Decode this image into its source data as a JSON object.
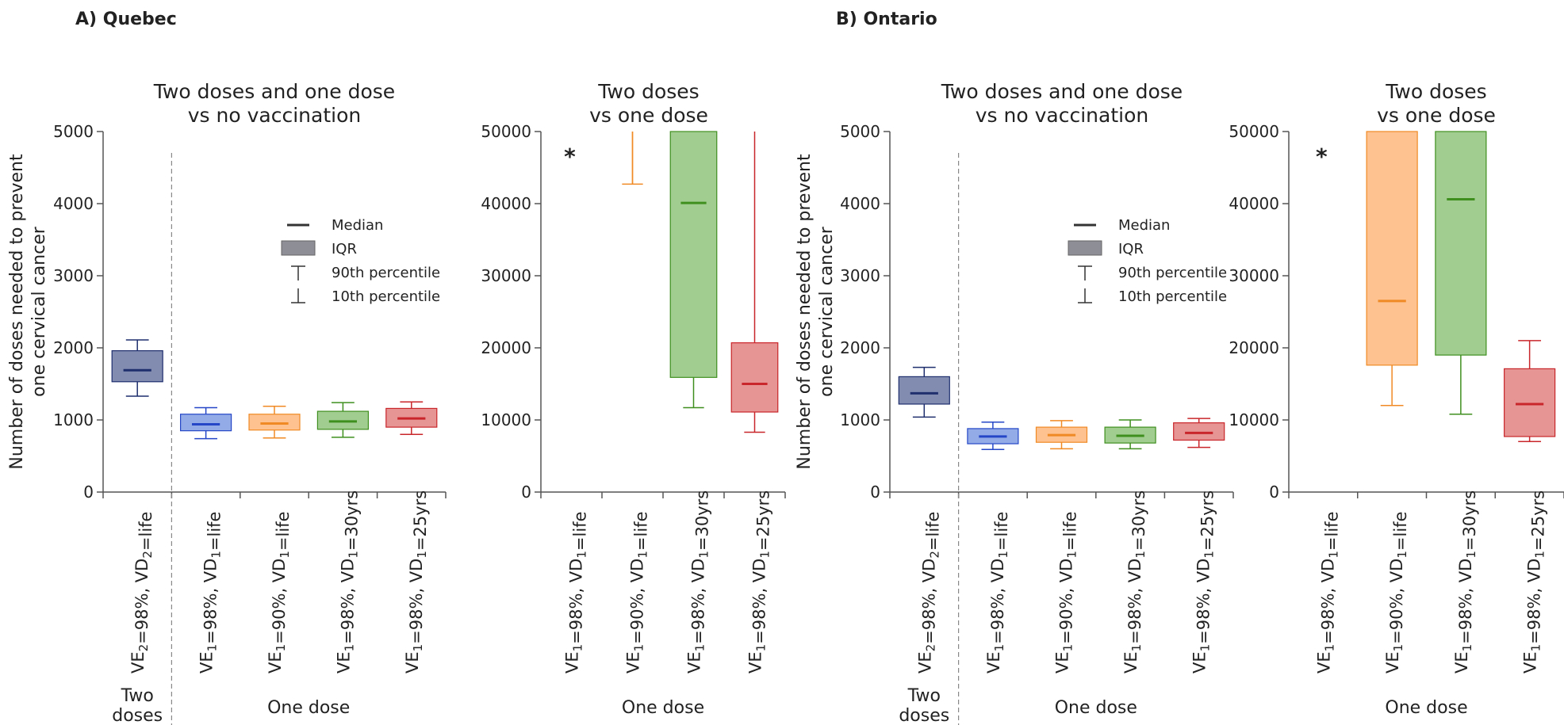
{
  "panels": [
    {
      "label": "A) Quebec"
    },
    {
      "label": "B) Ontario"
    }
  ],
  "legend": {
    "median": "Median",
    "iqr": "IQR",
    "p90": "90th percentile",
    "p10": "10th percentile"
  },
  "colors": {
    "two_dose": "#1f2f6e",
    "two_dose_fill": "#7b86ad",
    "blue": "#2547c7",
    "blue_fill": "#8da6e6",
    "orange": "#f08a24",
    "orange_fill": "#fdbf8a",
    "green": "#3f8f1f",
    "green_fill": "#9ccb8a",
    "red": "#c8262a",
    "red_fill": "#e68e8e",
    "axis": "#555555"
  },
  "chart_data": [
    {
      "type": "box",
      "panel": "A) Quebec",
      "title": "Two doses and one dose\nvs no vaccination",
      "ylabel": "Number of doses needed to prevent\none cervical cancer",
      "ylim": [
        0,
        5000
      ],
      "yticks": [
        0,
        1000,
        2000,
        3000,
        4000,
        5000
      ],
      "groups": [
        {
          "label": "Two\ndoses",
          "span": [
            0,
            0
          ]
        },
        {
          "label": "One dose",
          "span": [
            1,
            4
          ]
        }
      ],
      "categories": [
        "VE2=98%, VD2=life",
        "VE1=98%, VD1=life",
        "VE1=90%, VD1=life",
        "VE1=98%, VD1=30yrs",
        "VE1=98%, VD1=25yrs"
      ],
      "series": [
        {
          "color": "two_dose",
          "p10": 1330,
          "q1": 1530,
          "median": 1690,
          "q3": 1960,
          "p90": 2110
        },
        {
          "color": "blue",
          "p10": 740,
          "q1": 850,
          "median": 940,
          "q3": 1080,
          "p90": 1170
        },
        {
          "color": "orange",
          "p10": 750,
          "q1": 860,
          "median": 950,
          "q3": 1080,
          "p90": 1190
        },
        {
          "color": "green",
          "p10": 760,
          "q1": 870,
          "median": 980,
          "q3": 1120,
          "p90": 1240
        },
        {
          "color": "red",
          "p10": 800,
          "q1": 900,
          "median": 1020,
          "q3": 1160,
          "p90": 1250
        }
      ]
    },
    {
      "type": "box",
      "panel": "A) Quebec",
      "title": "Two doses\nvs one dose",
      "ylim": [
        0,
        50000
      ],
      "yticks": [
        0,
        10000,
        20000,
        30000,
        40000,
        50000
      ],
      "groups": [
        {
          "label": "One dose",
          "span": [
            0,
            3
          ]
        }
      ],
      "categories": [
        "VE1=98%, VD1=life",
        "VE1=90%, VD1=life",
        "VE1=98%, VD1=30yrs",
        "VE1=98%, VD1=25yrs"
      ],
      "annotations": [
        {
          "category": 0,
          "text": "*"
        }
      ],
      "series": [
        {
          "color": "blue",
          "empty": true
        },
        {
          "color": "orange",
          "p10": 42700,
          "q1": null,
          "median": null,
          "q3": null,
          "p90": 50000
        },
        {
          "color": "green",
          "p10": 11700,
          "q1": 15900,
          "median": 40100,
          "q3": 50000,
          "p90": 50000
        },
        {
          "color": "red",
          "p10": 8300,
          "q1": 11100,
          "median": 15000,
          "q3": 20700,
          "p90": 50000
        }
      ]
    },
    {
      "type": "box",
      "panel": "B) Ontario",
      "title": "Two doses and one dose\nvs no vaccination",
      "ylabel": "Number of doses needed to prevent\none cervical cancer",
      "ylim": [
        0,
        5000
      ],
      "yticks": [
        0,
        1000,
        2000,
        3000,
        4000,
        5000
      ],
      "groups": [
        {
          "label": "Two\ndoses",
          "span": [
            0,
            0
          ]
        },
        {
          "label": "One dose",
          "span": [
            1,
            4
          ]
        }
      ],
      "categories": [
        "VE2=98%, VD2=life",
        "VE1=98%, VD1=life",
        "VE1=90%, VD1=life",
        "VE1=98%, VD1=30yrs",
        "VE1=98%, VD1=25yrs"
      ],
      "series": [
        {
          "color": "two_dose",
          "p10": 1040,
          "q1": 1220,
          "median": 1370,
          "q3": 1600,
          "p90": 1730
        },
        {
          "color": "blue",
          "p10": 590,
          "q1": 670,
          "median": 770,
          "q3": 880,
          "p90": 970
        },
        {
          "color": "orange",
          "p10": 600,
          "q1": 690,
          "median": 790,
          "q3": 900,
          "p90": 990
        },
        {
          "color": "green",
          "p10": 600,
          "q1": 680,
          "median": 780,
          "q3": 900,
          "p90": 1000
        },
        {
          "color": "red",
          "p10": 620,
          "q1": 720,
          "median": 820,
          "q3": 960,
          "p90": 1020
        }
      ]
    },
    {
      "type": "box",
      "panel": "B) Ontario",
      "title": "Two doses\nvs one dose",
      "ylim": [
        0,
        50000
      ],
      "yticks": [
        0,
        10000,
        20000,
        30000,
        40000,
        50000
      ],
      "groups": [
        {
          "label": "One dose",
          "span": [
            0,
            3
          ]
        }
      ],
      "categories": [
        "VE1=98%, VD1=life",
        "VE1=90%, VD1=life",
        "VE1=98%, VD1=30yrs",
        "VE1=98%, VD1=25yrs"
      ],
      "annotations": [
        {
          "category": 0,
          "text": "*"
        }
      ],
      "series": [
        {
          "color": "blue",
          "empty": true
        },
        {
          "color": "orange",
          "p10": 12000,
          "q1": 17600,
          "median": 26500,
          "q3": 50000,
          "p90": 50000
        },
        {
          "color": "green",
          "p10": 10800,
          "q1": 19000,
          "median": 40600,
          "q3": 50000,
          "p90": 50000
        },
        {
          "color": "red",
          "p10": 7000,
          "q1": 7700,
          "median": 12200,
          "q3": 17100,
          "p90": 21000
        }
      ]
    }
  ]
}
